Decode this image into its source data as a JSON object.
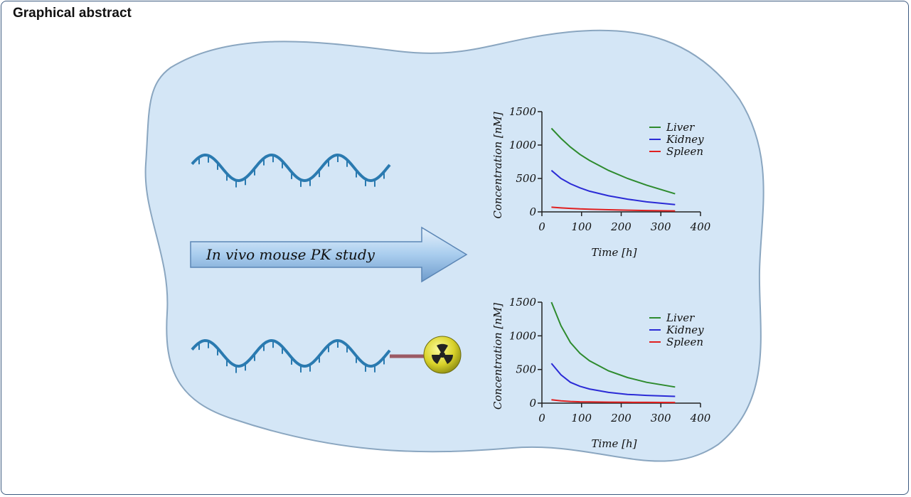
{
  "header": {
    "title": "Graphical abstract"
  },
  "arrow_label": "In vivo mouse PK study",
  "chart_data": [
    {
      "type": "line",
      "x_label": "Time [h]",
      "y_label": "Concentration [nM]",
      "x": [
        24,
        48,
        72,
        96,
        120,
        168,
        216,
        264,
        336
      ],
      "series": [
        {
          "name": "Liver",
          "color": "#2e8b2e",
          "values": [
            1250,
            1100,
            970,
            860,
            770,
            620,
            500,
            400,
            270
          ]
        },
        {
          "name": "Kidney",
          "color": "#2b2bd6",
          "values": [
            620,
            500,
            420,
            360,
            310,
            240,
            190,
            150,
            110
          ]
        },
        {
          "name": "Spleen",
          "color": "#e02020",
          "values": [
            70,
            60,
            52,
            45,
            40,
            32,
            25,
            20,
            15
          ]
        }
      ],
      "xlim": [
        0,
        400
      ],
      "xticks": [
        0,
        100,
        200,
        300,
        400
      ],
      "ylim": [
        0,
        1500
      ],
      "yticks": [
        0,
        500,
        1000,
        1500
      ],
      "grid": false,
      "legend": "upper right"
    },
    {
      "type": "line",
      "x_label": "Time [h]",
      "y_label": "Concentration [nM]",
      "x": [
        24,
        48,
        72,
        96,
        120,
        168,
        216,
        264,
        336
      ],
      "series": [
        {
          "name": "Liver",
          "color": "#2e8b2e",
          "values": [
            1500,
            1150,
            900,
            740,
            630,
            480,
            380,
            310,
            240
          ]
        },
        {
          "name": "Kidney",
          "color": "#2b2bd6",
          "values": [
            590,
            420,
            310,
            250,
            210,
            160,
            130,
            115,
            100
          ]
        },
        {
          "name": "Spleen",
          "color": "#e02020",
          "values": [
            50,
            35,
            25,
            20,
            18,
            15,
            13,
            12,
            10
          ]
        }
      ],
      "xlim": [
        0,
        400
      ],
      "xticks": [
        0,
        100,
        200,
        300,
        400
      ],
      "ylim": [
        0,
        1500
      ],
      "yticks": [
        0,
        500,
        1000,
        1500
      ],
      "grid": false,
      "legend": "upper right"
    }
  ]
}
